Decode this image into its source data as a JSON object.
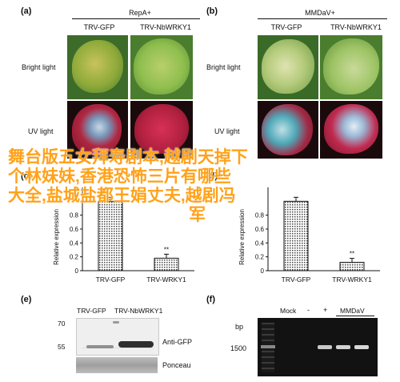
{
  "panels": {
    "a": {
      "label": "(a)",
      "title": "RepA+",
      "cols": [
        "TRV-GFP",
        "TRV-NbWRKY1"
      ],
      "rows": [
        "Bright light",
        "UV light"
      ]
    },
    "b": {
      "label": "(b)",
      "title": "MMDaV+",
      "cols": [
        "TRV-GFP",
        "TRV-NbWRKY1"
      ],
      "rows": [
        "Bright light",
        "UV light"
      ]
    },
    "c": {
      "label": "(c)"
    },
    "d": {
      "label": "(d)"
    },
    "e": {
      "label": "(e)",
      "cols": [
        "TRV-GFP",
        "TRV-NbWRKY1"
      ],
      "markers": [
        "70",
        "55"
      ],
      "bands": [
        "Anti-GFP",
        "Ponceau"
      ]
    },
    "f": {
      "label": "(f)",
      "lanes": [
        "Mock",
        "-",
        "+",
        "MMDaV"
      ],
      "marker_unit": "bp",
      "marker": "1500"
    }
  },
  "chart_data": [
    {
      "type": "bar",
      "panel": "c",
      "ylabel": "Relative expression",
      "ylim": [
        0,
        1.2
      ],
      "yticks": [
        "0",
        "0.2",
        "0.4",
        "0.6",
        "0.8"
      ],
      "categories": [
        "TRV-GFP",
        "TRV-WRKY1"
      ],
      "values": [
        1.0,
        0.18
      ],
      "significance": [
        "",
        "**"
      ]
    },
    {
      "type": "bar",
      "panel": "d",
      "ylabel": "Relative expression",
      "ylim": [
        0,
        1.2
      ],
      "yticks": [
        "0",
        "0.2",
        "0.4",
        "0.6",
        "0.8"
      ],
      "categories": [
        "TRV-GFP",
        "TRV-WRKY1"
      ],
      "values": [
        1.0,
        0.12
      ],
      "significance": [
        "",
        "**"
      ]
    }
  ],
  "overlay": {
    "lines": [
      "舞台版五女拜寿剧本,越剧天掉下",
      "个林妹妹,香港恐怖三片有哪些",
      "大全,盐城盐都王娟丈夫,越剧冯",
      "军"
    ],
    "color": "#ffa21a"
  }
}
